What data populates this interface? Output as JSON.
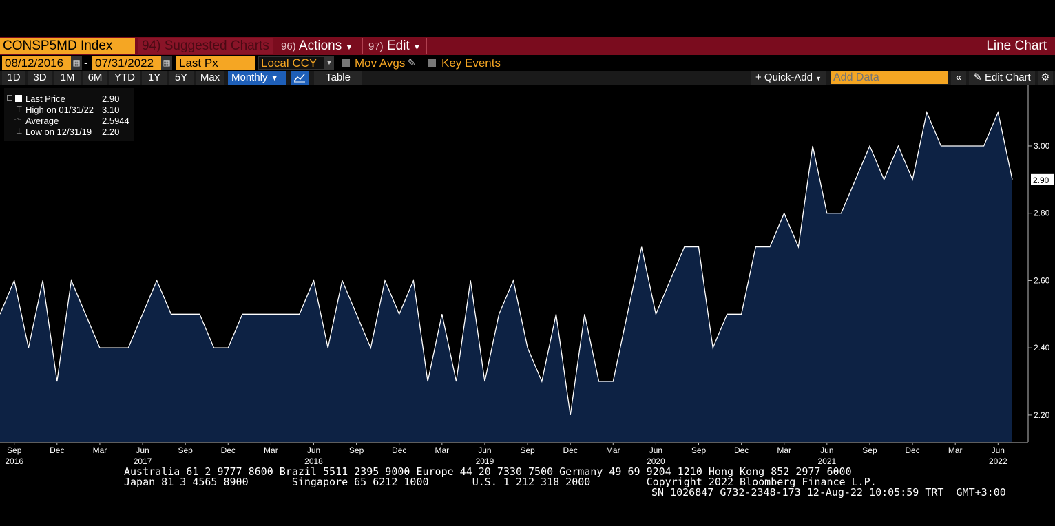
{
  "header": {
    "ticker": "CONSP5MD Index",
    "suggested": "94) Suggested Charts",
    "actions_num": "96)",
    "actions_label": "Actions",
    "edit_num": "97)",
    "edit_label": "Edit",
    "chart_type": "Line Chart"
  },
  "controls": {
    "start_date": "08/12/2016",
    "end_date": "07/31/2022",
    "date_sep": "-",
    "field": "Last Px",
    "currency": "Local CCY",
    "mov_avgs": "Mov Avgs",
    "key_events": "Key Events",
    "ranges": [
      "1D",
      "3D",
      "1M",
      "6M",
      "YTD",
      "1Y",
      "5Y",
      "Max"
    ],
    "period": "Monthly",
    "table": "Table",
    "quick_add": "+ Quick-Add",
    "add_data_placeholder": "Add Data",
    "edit_chart": "Edit Chart"
  },
  "legend": {
    "last_label": "Last Price",
    "last_value": "2.90",
    "high_label": "High on 01/31/22",
    "high_value": "3.10",
    "avg_label": "Average",
    "avg_value": "2.5944",
    "low_label": "Low on 12/31/19",
    "low_value": "2.20"
  },
  "footer": {
    "line1": "Australia 61 2 9777 8600 Brazil 5511 2395 9000 Europe 44 20 7330 7500 Germany 49 69 9204 1210 Hong Kong 852 2977 6000",
    "line2": "Japan 81 3 4565 8900       Singapore 65 6212 1000       U.S. 1 212 318 2000         Copyright 2022 Bloomberg Finance L.P.",
    "line3": "SN 1026847 G732-2348-173 12-Aug-22 10:05:59 TRT  GMT+3:00"
  },
  "colors": {
    "fill": "#0d2244",
    "line": "#ffffff",
    "orange": "#f5a623",
    "bar": "#7a0c1e"
  },
  "chart_data": {
    "type": "area",
    "x_start": "2016-08",
    "x_end": "2022-07",
    "y": [
      2.5,
      2.6,
      2.4,
      2.6,
      2.3,
      2.6,
      2.5,
      2.4,
      2.4,
      2.4,
      2.5,
      2.6,
      2.5,
      2.5,
      2.5,
      2.4,
      2.4,
      2.5,
      2.5,
      2.5,
      2.5,
      2.5,
      2.6,
      2.4,
      2.6,
      2.5,
      2.4,
      2.6,
      2.5,
      2.6,
      2.3,
      2.5,
      2.3,
      2.6,
      2.3,
      2.5,
      2.6,
      2.4,
      2.3,
      2.5,
      2.2,
      2.5,
      2.3,
      2.3,
      2.5,
      2.7,
      2.5,
      2.6,
      2.7,
      2.7,
      2.4,
      2.5,
      2.5,
      2.7,
      2.7,
      2.8,
      2.7,
      3.0,
      2.8,
      2.8,
      2.9,
      3.0,
      2.9,
      3.0,
      2.9,
      3.1,
      3.0,
      3.0,
      3.0,
      3.0,
      3.1,
      2.9
    ],
    "ylim": [
      2.12,
      3.18
    ],
    "y_ticks": [
      "2.20",
      "2.40",
      "2.60",
      "2.80",
      "3.00"
    ],
    "last_value_label": "2.90",
    "x_month_labels": [
      {
        "i": 1,
        "t": "Sep"
      },
      {
        "i": 4,
        "t": "Dec"
      },
      {
        "i": 7,
        "t": "Mar"
      },
      {
        "i": 10,
        "t": "Jun"
      },
      {
        "i": 13,
        "t": "Sep"
      },
      {
        "i": 16,
        "t": "Dec"
      },
      {
        "i": 19,
        "t": "Mar"
      },
      {
        "i": 22,
        "t": "Jun"
      },
      {
        "i": 25,
        "t": "Sep"
      },
      {
        "i": 28,
        "t": "Dec"
      },
      {
        "i": 31,
        "t": "Mar"
      },
      {
        "i": 34,
        "t": "Jun"
      },
      {
        "i": 37,
        "t": "Sep"
      },
      {
        "i": 40,
        "t": "Dec"
      },
      {
        "i": 43,
        "t": "Mar"
      },
      {
        "i": 46,
        "t": "Jun"
      },
      {
        "i": 49,
        "t": "Sep"
      },
      {
        "i": 52,
        "t": "Dec"
      },
      {
        "i": 55,
        "t": "Mar"
      },
      {
        "i": 58,
        "t": "Jun"
      },
      {
        "i": 61,
        "t": "Sep"
      },
      {
        "i": 64,
        "t": "Dec"
      },
      {
        "i": 67,
        "t": "Mar"
      },
      {
        "i": 70,
        "t": "Jun"
      }
    ],
    "x_year_labels": [
      {
        "i": 1,
        "t": "2016"
      },
      {
        "i": 10,
        "t": "2017"
      },
      {
        "i": 22,
        "t": "2018"
      },
      {
        "i": 34,
        "t": "2019"
      },
      {
        "i": 46,
        "t": "2020"
      },
      {
        "i": 58,
        "t": "2021"
      },
      {
        "i": 70,
        "t": "2022"
      }
    ],
    "grid": false
  }
}
